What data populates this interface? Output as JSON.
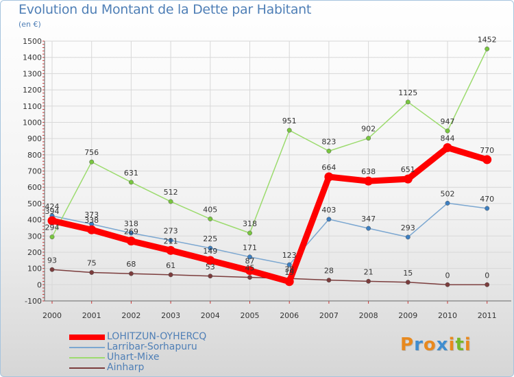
{
  "title": "Evolution du Montant de la Dette par Habitant",
  "subtitle": "(en €)",
  "logo": {
    "text": "Proxiti",
    "letter_colors": [
      "#e8891e",
      "#3f8dd0",
      "#e8891e",
      "#3f8dd0",
      "#e8891e",
      "#76b82a",
      "#e8891e"
    ]
  },
  "chart_data": {
    "type": "line",
    "title": "Evolution du Montant de la Dette par Habitant",
    "ylabel": "(en €)",
    "xlabel": "",
    "x": [
      "2000",
      "2001",
      "2002",
      "2003",
      "2004",
      "2005",
      "2006",
      "2007",
      "2008",
      "2009",
      "2010",
      "2011"
    ],
    "ylim": [
      -100,
      1500
    ],
    "yticks": [
      "-100",
      "0",
      "100",
      "200",
      "300",
      "400",
      "500",
      "600",
      "700",
      "800",
      "900",
      "1000",
      "1100",
      "1200",
      "1300",
      "1400",
      "1500"
    ],
    "grid": true,
    "legend_position": "bottom-left",
    "series": [
      {
        "name": "LOHITZUN-OYHERCQ",
        "color": "#ff0000",
        "values": [
          394,
          338,
          269,
          211,
          149,
          87,
          19,
          664,
          638,
          651,
          844,
          770
        ],
        "labels": [
          "394",
          "338",
          "269",
          "211",
          "149",
          "87",
          "19",
          "664",
          "638",
          "651",
          "844",
          "770"
        ],
        "style": "thick"
      },
      {
        "name": "Larribar-Sorhapuru",
        "color": "#7ba7d1",
        "point_color": "#3d7fc1",
        "values": [
          424,
          373,
          318,
          273,
          225,
          171,
          123,
          403,
          347,
          293,
          502,
          470
        ],
        "labels": [
          "424",
          "373",
          "318",
          "273",
          "225",
          "171",
          "123",
          "403",
          "347",
          "293",
          "502",
          "470"
        ],
        "style": "thin"
      },
      {
        "name": "Uhart-Mixe",
        "color": "#9cdb6e",
        "point_color": "#79c640",
        "values": [
          294,
          756,
          631,
          512,
          405,
          318,
          951,
          823,
          902,
          1125,
          947,
          1452
        ],
        "labels": [
          "294",
          "756",
          "631",
          "512",
          "405",
          "318",
          "951",
          "823",
          "902",
          "1125",
          "947",
          "1452"
        ],
        "style": "thin"
      },
      {
        "name": "Ainharp",
        "color": "#7b3c3c",
        "point_color": "#7b3c3c",
        "values": [
          93,
          75,
          68,
          61,
          53,
          45,
          38,
          28,
          21,
          15,
          0,
          0
        ],
        "labels": [
          "93",
          "75",
          "68",
          "61",
          "53",
          "45",
          "38",
          "28",
          "21",
          "15",
          "0",
          "0"
        ],
        "style": "thin"
      }
    ]
  }
}
